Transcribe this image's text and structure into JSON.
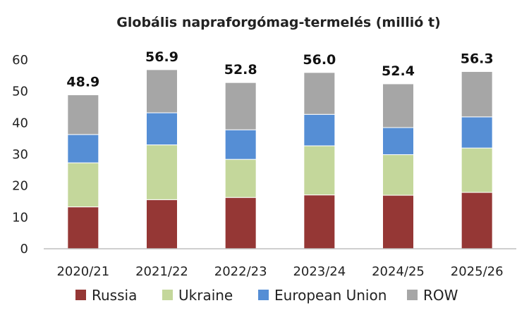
{
  "chart_data": {
    "type": "bar",
    "stacked": true,
    "title": "Globális napraforgómag-termelés (millió t)",
    "categories": [
      "2020/21",
      "2021/22",
      "2022/23",
      "2023/24",
      "2024/25",
      "2025/26"
    ],
    "totals": [
      "48.9",
      "56.9",
      "52.8",
      "56.0",
      "52.4",
      "56.3"
    ],
    "series": [
      {
        "name": "Russia",
        "color": "#953735",
        "values": [
          13.3,
          15.6,
          16.3,
          17.1,
          17.0,
          17.9
        ]
      },
      {
        "name": "Ukraine",
        "color": "#c4d79b",
        "values": [
          14.0,
          17.4,
          12.1,
          15.6,
          12.9,
          14.1
        ]
      },
      {
        "name": "European Union",
        "color": "#558ed5",
        "values": [
          9.0,
          10.2,
          9.4,
          10.0,
          8.6,
          9.9
        ]
      },
      {
        "name": "ROW",
        "color": "#a6a6a6",
        "values": [
          12.6,
          13.7,
          15.0,
          13.3,
          13.9,
          14.4
        ]
      }
    ],
    "ylim": [
      0,
      60
    ],
    "yticks": [
      0,
      10,
      20,
      30,
      40,
      50,
      60
    ],
    "xlabel": "",
    "ylabel": "",
    "grid": false,
    "legend": "bottom"
  }
}
